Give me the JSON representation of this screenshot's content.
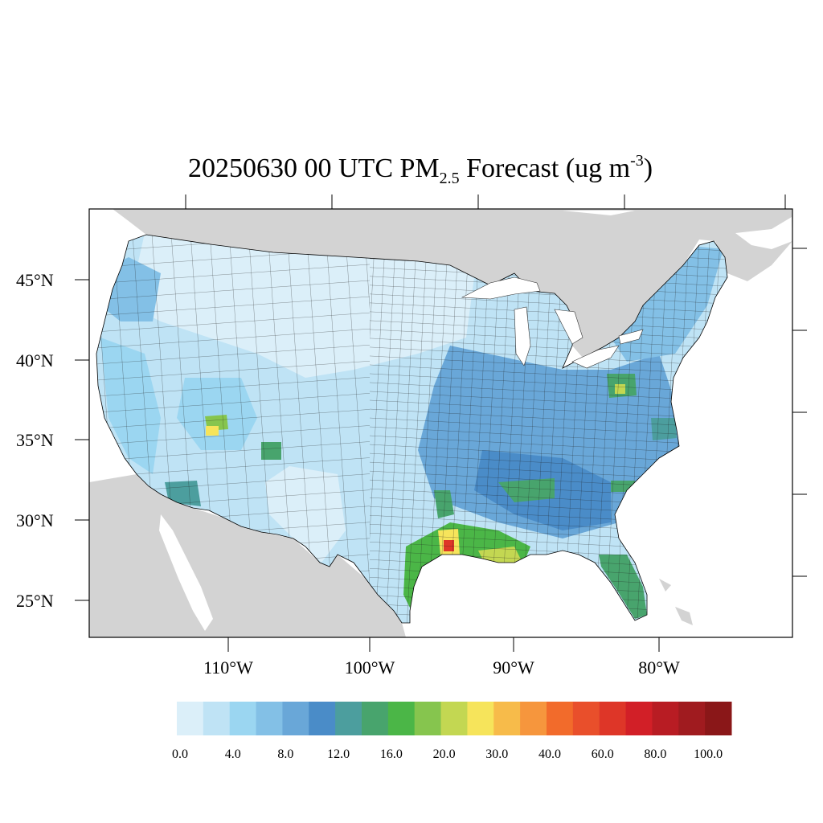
{
  "title": {
    "prefix": "20250630 00 UTC PM",
    "subscript": "2.5",
    "middle": " Forecast (ug m",
    "superscript": "-3",
    "suffix": ")"
  },
  "map": {
    "region": "Contiguous United States",
    "projection": "Lambert Conformal",
    "background_land_color": "#d3d3d3",
    "ocean_color": "#ffffff",
    "county_outline_color": "#000000",
    "lat_labels": [
      "45°N",
      "40°N",
      "35°N",
      "30°N",
      "25°N"
    ],
    "lon_labels": [
      "110°W",
      "100°W",
      "90°W",
      "80°W"
    ]
  },
  "colorbar": {
    "colors": [
      "#dbeff9",
      "#bfe3f5",
      "#9bd6f1",
      "#83c0e6",
      "#69a7d8",
      "#4a8cc8",
      "#4c9e9e",
      "#48a46d",
      "#4bb647",
      "#86c54e",
      "#c3d752",
      "#f6e45b",
      "#f7bb4a",
      "#f6963d",
      "#f26b2b",
      "#e94f2b",
      "#de3628",
      "#d21f27",
      "#b81c23",
      "#a01b1f",
      "#8a1718"
    ],
    "labels": [
      "0.0",
      "4.0",
      "8.0",
      "12.0",
      "16.0",
      "20.0",
      "30.0",
      "40.0",
      "60.0",
      "80.0",
      "100.0"
    ]
  },
  "hotspots": [
    {
      "area": "Houston, TX",
      "level": "40.0–80.0"
    },
    {
      "area": "Louisiana Gulf Coast",
      "level": "20.0–30.0"
    },
    {
      "area": "Southern Florida",
      "level": "12.0–16.0"
    },
    {
      "area": "Eastern Ohio / West Virginia",
      "level": "16.0–30.0"
    },
    {
      "area": "Four Corners, AZ",
      "level": "20.0–30.0"
    }
  ]
}
